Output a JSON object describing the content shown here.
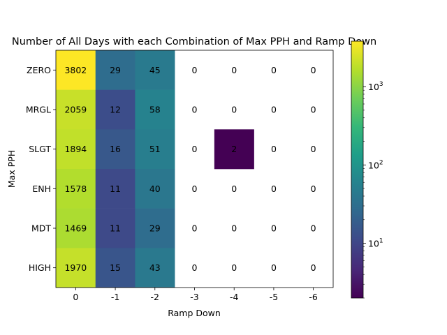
{
  "chart_data": {
    "type": "heatmap",
    "title": "Number of All Days with each Combination of Max PPH and Ramp Down",
    "xlabel": "Ramp Down",
    "ylabel": "Max PPH",
    "x_categories": [
      "0",
      "-1",
      "-2",
      "-3",
      "-4",
      "-5",
      "-6"
    ],
    "y_categories": [
      "ZERO",
      "MRGL",
      "SLGT",
      "ENH",
      "MDT",
      "HIGH"
    ],
    "values": [
      [
        3802,
        29,
        45,
        0,
        0,
        0,
        0
      ],
      [
        2059,
        12,
        58,
        0,
        0,
        0,
        0
      ],
      [
        1894,
        16,
        51,
        0,
        2,
        0,
        0
      ],
      [
        1578,
        11,
        40,
        0,
        0,
        0,
        0
      ],
      [
        1469,
        11,
        29,
        0,
        0,
        0,
        0
      ],
      [
        1970,
        15,
        43,
        0,
        0,
        0,
        0
      ]
    ],
    "color_scale": "log",
    "colormap": "viridis",
    "zero_cells": "blank (white)",
    "colorbar": {
      "range": [
        2,
        3802
      ],
      "tick_labels": [
        {
          "base": "10",
          "exp": "1",
          "value": 10
        },
        {
          "base": "10",
          "exp": "2",
          "value": 100
        },
        {
          "base": "10",
          "exp": "3",
          "value": 1000
        }
      ]
    },
    "grid": false
  }
}
